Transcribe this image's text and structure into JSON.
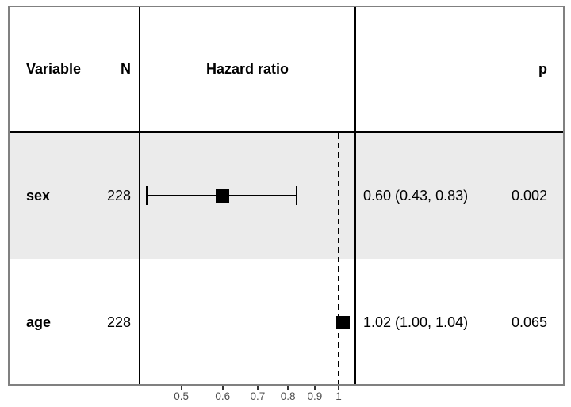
{
  "colors": {
    "background": "#ffffff",
    "panel_border": "#808080",
    "divider": "#000000",
    "stripe": "#ebebeb",
    "marker": "#000000",
    "reference_line": "#000000",
    "axis_text": "#4d4d4d",
    "tick_mark": "#333333"
  },
  "header": {
    "variable_label": "Variable",
    "n_label": "N",
    "hazard_ratio_label": "Hazard ratio",
    "p_label": "p"
  },
  "chart_data": {
    "type": "forest",
    "title": "",
    "x_scale": "log",
    "x_axis_range": [
      0.416,
      1.076
    ],
    "x_ticks": [
      0.5,
      0.6,
      0.7,
      0.8,
      0.9,
      1
    ],
    "x_tick_labels": [
      "0.5",
      "0.6",
      "0.7",
      "0.8",
      "0.9",
      "1"
    ],
    "reference_line_x": 1,
    "grid": false,
    "rows": [
      {
        "variable": "sex",
        "n": "228",
        "estimate": 0.6,
        "ci_low": 0.43,
        "ci_high": 0.83,
        "ci_text": "0.60 (0.43, 0.83)",
        "p_value": "0.002",
        "shaded": true
      },
      {
        "variable": "age",
        "n": "228",
        "estimate": 1.02,
        "ci_low": 1.0,
        "ci_high": 1.04,
        "ci_text": "1.02 (1.00, 1.04)",
        "p_value": "0.065",
        "shaded": false
      }
    ]
  }
}
